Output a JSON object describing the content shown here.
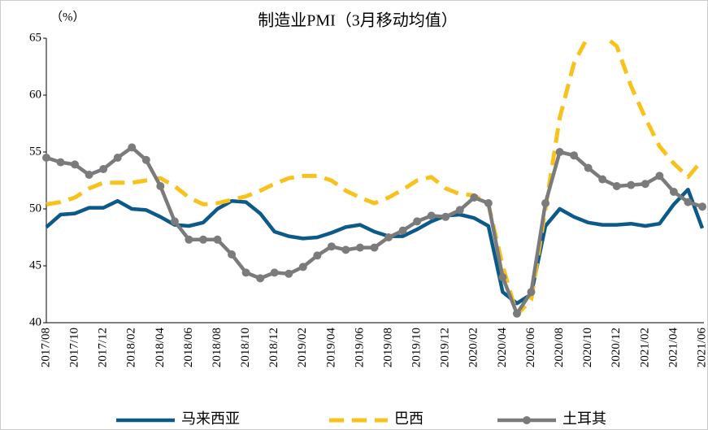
{
  "chart_data": {
    "type": "line",
    "title": "制造业PMI（3月移动均值）",
    "y_unit": "（%）",
    "categories": [
      "2017/08",
      null,
      "2017/10",
      null,
      "2017/12",
      null,
      "2018/02",
      null,
      "2018/04",
      null,
      "2018/06",
      null,
      "2018/08",
      null,
      "2018/10",
      null,
      "2018/12",
      null,
      "2019/02",
      null,
      "2019/04",
      null,
      "2019/06",
      null,
      "2019/08",
      null,
      "2019/10",
      null,
      "2019/12",
      null,
      "2020/02",
      null,
      "2020/04",
      null,
      "2020/06",
      null,
      "2020/08",
      null,
      "2020/10",
      null,
      "2020/12",
      null,
      "2021/02",
      null,
      "2021/04",
      null,
      "2021/06"
    ],
    "series": [
      {
        "name": "马来西亚",
        "color": "#0b5a8a",
        "dash": false,
        "markers": false,
        "values": [
          48.4,
          49.5,
          49.6,
          50.1,
          50.1,
          50.7,
          50.0,
          49.9,
          49.3,
          48.6,
          48.5,
          48.8,
          50.0,
          50.7,
          50.6,
          49.6,
          48.0,
          47.6,
          47.4,
          47.5,
          47.9,
          48.4,
          48.6,
          48.0,
          47.6,
          47.6,
          48.2,
          48.9,
          49.4,
          49.5,
          49.2,
          48.5,
          42.7,
          41.7,
          42.5,
          48.5,
          50.0,
          49.3,
          48.8,
          48.6,
          48.6,
          48.7,
          48.5,
          48.7,
          50.4,
          51.7,
          48.3
        ]
      },
      {
        "name": "巴西",
        "color": "#f7c21b",
        "dash": true,
        "markers": false,
        "values": [
          50.4,
          50.6,
          51.0,
          51.8,
          52.3,
          52.3,
          52.3,
          52.5,
          52.7,
          52.0,
          51.0,
          50.4,
          50.5,
          50.8,
          51.1,
          51.6,
          52.2,
          52.7,
          52.9,
          52.9,
          52.5,
          51.6,
          51.0,
          50.5,
          51.0,
          51.7,
          52.5,
          52.8,
          51.8,
          51.3,
          51.2,
          50.4,
          45.0,
          40.7,
          42.0,
          50.0,
          58.0,
          62.8,
          65.2,
          65.3,
          64.3,
          60.8,
          58.0,
          55.5,
          54.0,
          52.8,
          54.3
        ]
      },
      {
        "name": "土耳其",
        "color": "#7b7b7b",
        "dash": false,
        "markers": true,
        "values": [
          54.5,
          54.1,
          53.9,
          53.0,
          53.5,
          54.5,
          55.4,
          54.3,
          52.0,
          48.9,
          47.3,
          47.3,
          47.3,
          46.0,
          44.4,
          43.9,
          44.4,
          44.3,
          44.9,
          45.9,
          46.7,
          46.4,
          46.6,
          46.6,
          47.5,
          48.1,
          48.9,
          49.4,
          49.3,
          49.9,
          51.0,
          50.5,
          44.0,
          40.8,
          42.7,
          50.5,
          55.0,
          54.7,
          53.6,
          52.6,
          52.0,
          52.1,
          52.2,
          52.9,
          51.5,
          50.6,
          50.2
        ]
      }
    ],
    "ylim": [
      40,
      65
    ],
    "yticks": [
      40,
      45,
      50,
      55,
      60,
      65
    ],
    "grid": false,
    "legend": "bottom"
  }
}
